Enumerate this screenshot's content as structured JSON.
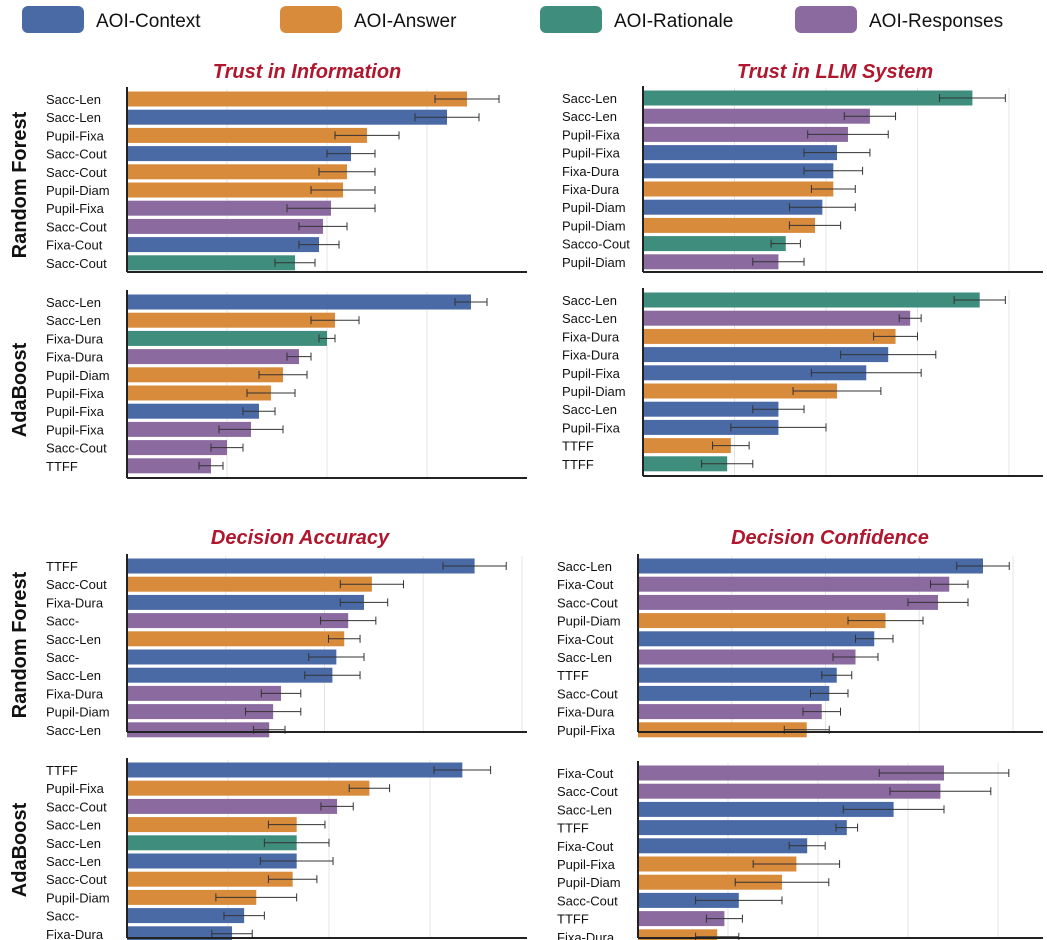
{
  "colors": {
    "AOI-Context": "#4a6aa5",
    "AOI-Answer": "#d98b3c",
    "AOI-Rationale": "#3f8d7d",
    "AOI-Responses": "#8b6aa0"
  },
  "legend": [
    "AOI-Context",
    "AOI-Answer",
    "AOI-Rationale",
    "AOI-Responses"
  ],
  "row_labels": [
    "Random Forest",
    "AdaBoost",
    "Random Forest",
    "AdaBoost"
  ],
  "titles": [
    "Trust in Information",
    "Trust in LLM System",
    "Decision Accuracy",
    "Decision Confidence"
  ],
  "chart_data": [
    {
      "type": "bar",
      "orientation": "horizontal",
      "title": "Trust in Information",
      "model": "Random Forest",
      "categories": [
        "Sacc-Len",
        "Sacc-Len",
        "Pupil-Fixa",
        "Sacc-Cout",
        "Sacc-Cout",
        "Pupil-Diam",
        "Pupil-Fixa",
        "Sacc-Cout",
        "Fixa-Cout",
        "Sacc-Cout"
      ],
      "aoi": [
        "AOI-Answer",
        "AOI-Context",
        "AOI-Answer",
        "AOI-Context",
        "AOI-Answer",
        "AOI-Answer",
        "AOI-Responses",
        "AOI-Responses",
        "AOI-Context",
        "AOI-Rationale"
      ],
      "values": [
        0.85,
        0.8,
        0.6,
        0.56,
        0.55,
        0.54,
        0.51,
        0.49,
        0.48,
        0.42
      ],
      "errors": [
        0.08,
        0.08,
        0.08,
        0.06,
        0.07,
        0.08,
        0.11,
        0.06,
        0.05,
        0.05
      ],
      "xlim": [
        0,
        1
      ]
    },
    {
      "type": "bar",
      "orientation": "horizontal",
      "title": "Trust in LLM System",
      "model": "Random Forest",
      "categories": [
        "Sacc-Len",
        "Sacc-Len",
        "Pupil-Fixa",
        "Pupil-Fixa",
        "Fixa-Dura",
        "Fixa-Dura",
        "Pupil-Diam",
        "Pupil-Diam",
        "Sacco-Cout",
        "Pupil-Diam"
      ],
      "aoi": [
        "AOI-Rationale",
        "AOI-Responses",
        "AOI-Responses",
        "AOI-Context",
        "AOI-Context",
        "AOI-Answer",
        "AOI-Context",
        "AOI-Answer",
        "AOI-Rationale",
        "AOI-Responses"
      ],
      "values": [
        0.9,
        0.62,
        0.56,
        0.53,
        0.52,
        0.52,
        0.49,
        0.47,
        0.39,
        0.37
      ],
      "errors": [
        0.09,
        0.07,
        0.11,
        0.09,
        0.08,
        0.06,
        0.09,
        0.07,
        0.04,
        0.07
      ],
      "xlim": [
        0,
        1
      ]
    },
    {
      "type": "bar",
      "orientation": "horizontal",
      "title": "",
      "model": "AdaBoost",
      "categories": [
        "Sacc-Len",
        "Sacc-Len",
        "Fixa-Dura",
        "Fixa-Dura",
        "Pupil-Diam",
        "Pupil-Fixa",
        "Pupil-Fixa",
        "Pupil-Fixa",
        "Sacc-Cout",
        "TTFF"
      ],
      "aoi": [
        "AOI-Context",
        "AOI-Answer",
        "AOI-Rationale",
        "AOI-Responses",
        "AOI-Answer",
        "AOI-Answer",
        "AOI-Context",
        "AOI-Responses",
        "AOI-Responses",
        "AOI-Responses"
      ],
      "values": [
        0.86,
        0.52,
        0.5,
        0.43,
        0.39,
        0.36,
        0.33,
        0.31,
        0.25,
        0.21
      ],
      "errors": [
        0.04,
        0.06,
        0.02,
        0.03,
        0.06,
        0.06,
        0.04,
        0.08,
        0.04,
        0.03
      ],
      "xlim": [
        0,
        1
      ]
    },
    {
      "type": "bar",
      "orientation": "horizontal",
      "title": "",
      "model": "AdaBoost",
      "categories": [
        "Sacc-Len",
        "Sacc-Len",
        "Fixa-Dura",
        "Fixa-Dura",
        "Pupil-Fixa",
        "Pupil-Diam",
        "Sacc-Len",
        "Pupil-Fixa",
        "TTFF",
        "TTFF"
      ],
      "aoi": [
        "AOI-Rationale",
        "AOI-Responses",
        "AOI-Answer",
        "AOI-Context",
        "AOI-Context",
        "AOI-Answer",
        "AOI-Context",
        "AOI-Context",
        "AOI-Answer",
        "AOI-Rationale"
      ],
      "values": [
        0.92,
        0.73,
        0.69,
        0.67,
        0.61,
        0.53,
        0.37,
        0.37,
        0.24,
        0.23
      ],
      "errors": [
        0.07,
        0.03,
        0.06,
        0.13,
        0.15,
        0.12,
        0.07,
        0.13,
        0.05,
        0.07
      ],
      "xlim": [
        0,
        1
      ]
    },
    {
      "type": "bar",
      "orientation": "horizontal",
      "title": "Decision Accuracy",
      "model": "Random Forest",
      "categories": [
        "TTFF",
        "Sacc-Cout",
        "Fixa-Dura",
        "Sacc-",
        "Sacc-Len",
        "Sacc-",
        "Sacc-Len",
        "Fixa-Dura",
        "Pupil-Diam",
        "Sacc-Len"
      ],
      "aoi": [
        "AOI-Context",
        "AOI-Answer",
        "AOI-Context",
        "AOI-Responses",
        "AOI-Answer",
        "AOI-Context",
        "AOI-Context",
        "AOI-Responses",
        "AOI-Responses",
        "AOI-Responses"
      ],
      "values": [
        0.88,
        0.62,
        0.6,
        0.56,
        0.55,
        0.53,
        0.52,
        0.39,
        0.37,
        0.36
      ],
      "errors": [
        0.08,
        0.08,
        0.06,
        0.07,
        0.04,
        0.07,
        0.07,
        0.05,
        0.07,
        0.04
      ],
      "xlim": [
        0,
        1
      ]
    },
    {
      "type": "bar",
      "orientation": "horizontal",
      "title": "Decision Confidence",
      "model": "Random Forest",
      "categories": [
        "Sacc-Len",
        "Fixa-Cout",
        "Sacc-Cout",
        "Pupil-Diam",
        "Fixa-Cout",
        "Sacc-Len",
        "TTFF",
        "Sacc-Cout",
        "Fixa-Dura",
        "Pupil-Fixa"
      ],
      "aoi": [
        "AOI-Context",
        "AOI-Responses",
        "AOI-Responses",
        "AOI-Answer",
        "AOI-Context",
        "AOI-Responses",
        "AOI-Context",
        "AOI-Context",
        "AOI-Responses",
        "AOI-Answer"
      ],
      "values": [
        0.92,
        0.83,
        0.8,
        0.66,
        0.63,
        0.58,
        0.53,
        0.51,
        0.49,
        0.45
      ],
      "errors": [
        0.07,
        0.05,
        0.08,
        0.1,
        0.05,
        0.06,
        0.04,
        0.05,
        0.05,
        0.06
      ],
      "xlim": [
        0,
        1
      ]
    },
    {
      "type": "bar",
      "orientation": "horizontal",
      "title": "",
      "model": "AdaBoost",
      "categories": [
        "TTFF",
        "Pupil-Fixa",
        "Sacc-Cout",
        "Sacc-Len",
        "Sacc-Len",
        "Sacc-Len",
        "Sacc-Cout",
        "Pupil-Diam",
        "Sacc-",
        "Fixa-Dura"
      ],
      "aoi": [
        "AOI-Context",
        "AOI-Answer",
        "AOI-Responses",
        "AOI-Answer",
        "AOI-Rationale",
        "AOI-Context",
        "AOI-Answer",
        "AOI-Answer",
        "AOI-Context",
        "AOI-Context"
      ],
      "values": [
        0.83,
        0.6,
        0.52,
        0.42,
        0.42,
        0.42,
        0.41,
        0.32,
        0.29,
        0.26
      ],
      "errors": [
        0.07,
        0.05,
        0.04,
        0.07,
        0.08,
        0.09,
        0.06,
        0.1,
        0.05,
        0.05
      ],
      "xlim": [
        0,
        1
      ]
    },
    {
      "type": "bar",
      "orientation": "horizontal",
      "title": "",
      "model": "AdaBoost",
      "categories": [
        "Fixa-Cout",
        "Sacc-Cout",
        "Sacc-Len",
        "TTFF",
        "Fixa-Cout",
        "Pupil-Fixa",
        "Pupil-Diam",
        "Sacc-Cout",
        "TTFF",
        "Fixa-Dura"
      ],
      "aoi": [
        "AOI-Responses",
        "AOI-Responses",
        "AOI-Context",
        "AOI-Context",
        "AOI-Context",
        "AOI-Answer",
        "AOI-Answer",
        "AOI-Context",
        "AOI-Responses",
        "AOI-Answer"
      ],
      "values": [
        0.85,
        0.84,
        0.71,
        0.58,
        0.47,
        0.44,
        0.4,
        0.28,
        0.24,
        0.22
      ],
      "errors": [
        0.18,
        0.14,
        0.14,
        0.03,
        0.05,
        0.12,
        0.13,
        0.12,
        0.05,
        0.06
      ],
      "xlim": [
        0,
        1
      ]
    }
  ]
}
